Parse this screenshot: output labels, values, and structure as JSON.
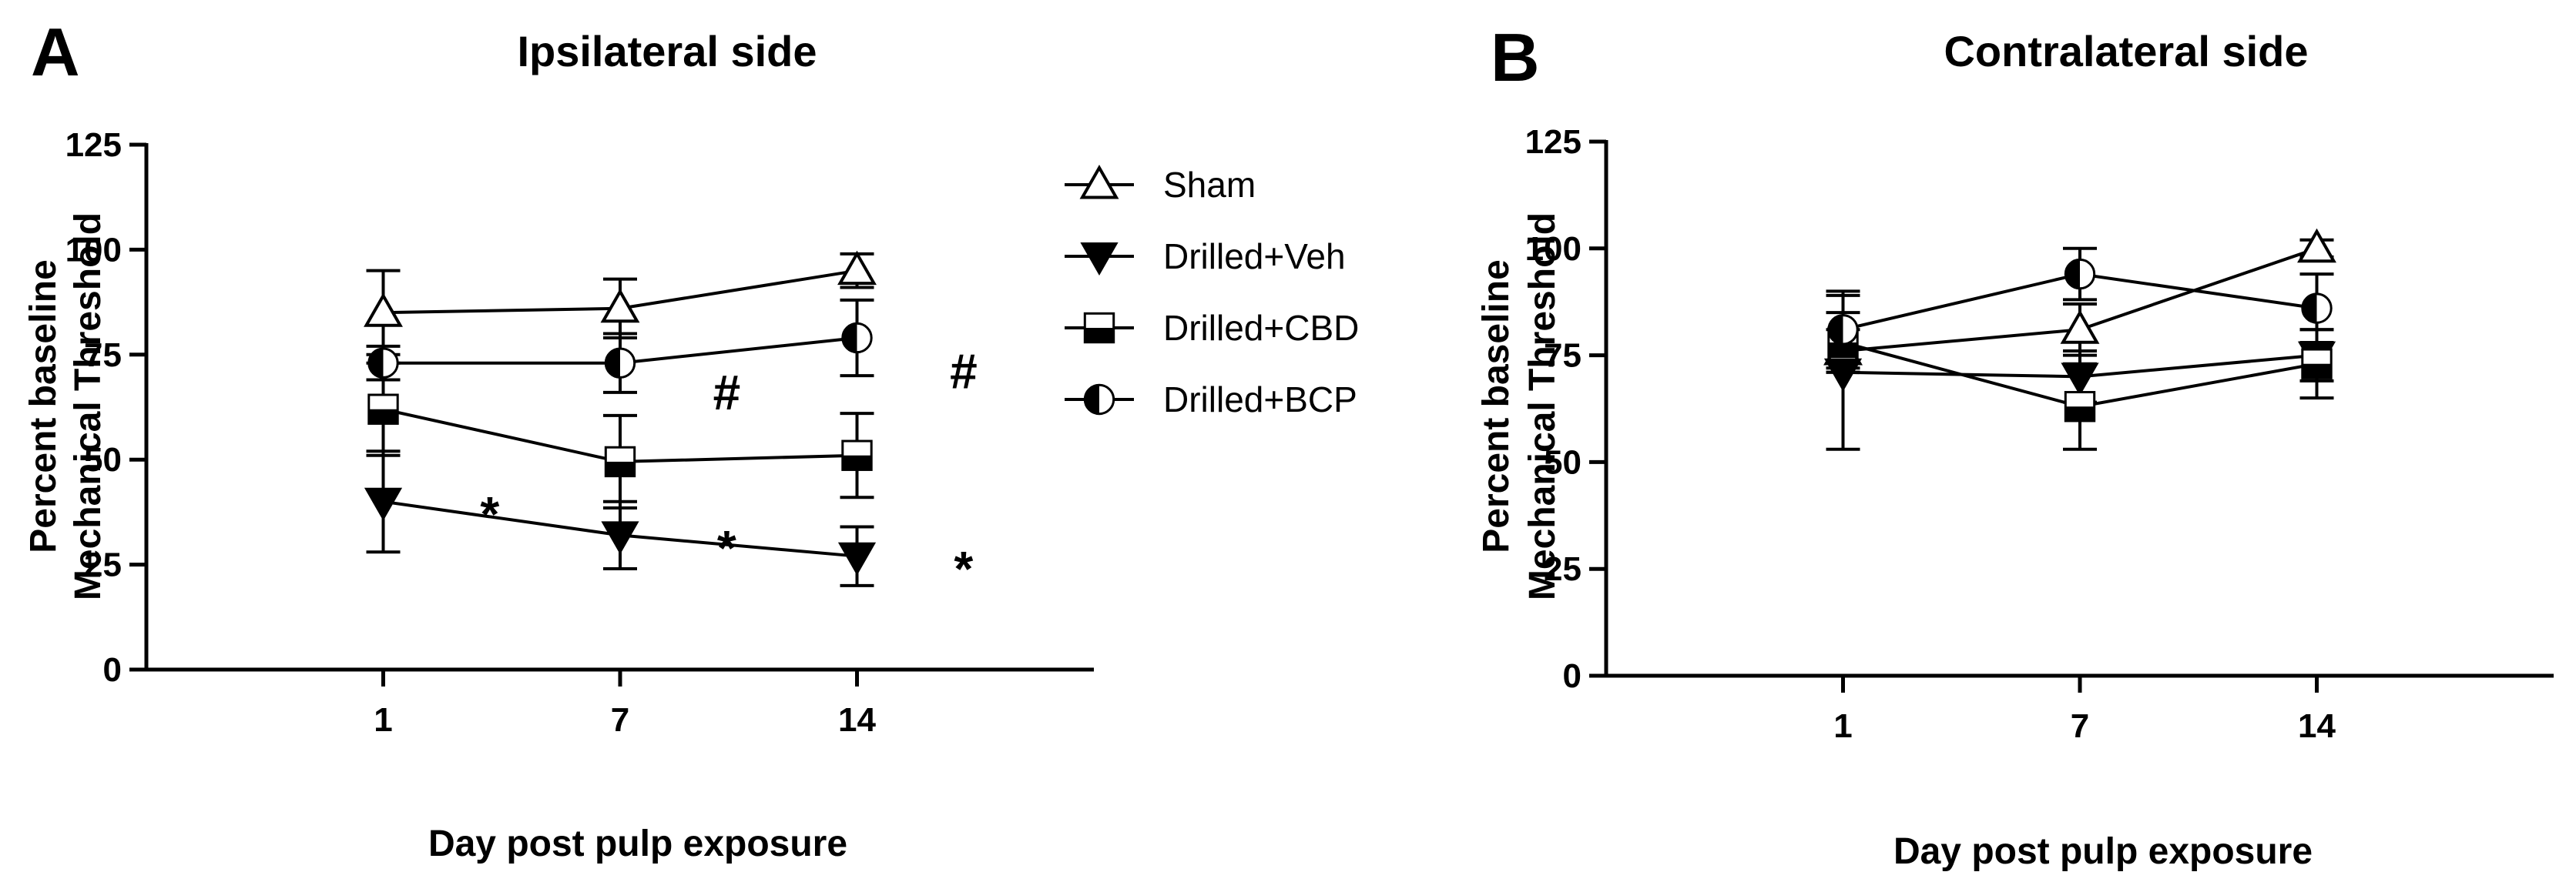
{
  "figure": {
    "legend": [
      {
        "key": "sham",
        "label": "Sham",
        "marker": "triangle-up-open"
      },
      {
        "key": "veh",
        "label": "Drilled+Veh",
        "marker": "triangle-down-filled"
      },
      {
        "key": "cbd",
        "label": "Drilled+CBD",
        "marker": "square-half"
      },
      {
        "key": "bcp",
        "label": "Drilled+BCP",
        "marker": "circle-half"
      }
    ]
  },
  "chart_data": [
    {
      "panel": "A",
      "type": "line",
      "title": "Ipsilateral side",
      "xlabel": "Day post pulp exposure",
      "ylabel": [
        "Percent baseline",
        "Mechanical Threshold"
      ],
      "categories": [
        "1",
        "7",
        "14"
      ],
      "x_range": [
        0,
        4
      ],
      "ylim": [
        0,
        125
      ],
      "yticks": [
        0,
        25,
        50,
        75,
        100,
        125
      ],
      "series": [
        {
          "key": "sham",
          "name": "Sham",
          "values": [
            85,
            86,
            95
          ],
          "err": [
            10,
            7,
            4
          ]
        },
        {
          "key": "veh",
          "name": "Drilled+Veh",
          "values": [
            40,
            32,
            27
          ],
          "err": [
            12,
            8,
            7
          ]
        },
        {
          "key": "cbd",
          "name": "Drilled+CBD",
          "values": [
            62,
            49.5,
            51
          ],
          "err": [
            11,
            11,
            10
          ]
        },
        {
          "key": "bcp",
          "name": "Drilled+BCP",
          "values": [
            73,
            73,
            79
          ],
          "err": [
            4,
            7,
            9
          ]
        }
      ],
      "annotations": [
        {
          "text": "*",
          "category": 0,
          "near": 40,
          "dx": 0.45,
          "dy": -3
        },
        {
          "text": "*",
          "category": 1,
          "near": 32,
          "dx": 0.45,
          "dy": -3
        },
        {
          "text": "*",
          "category": 2,
          "near": 27,
          "dx": 0.45,
          "dy": -3
        },
        {
          "text": "#",
          "category": 1,
          "near": 73,
          "dx": 0.45,
          "dy": -7
        },
        {
          "text": "#",
          "category": 2,
          "near": 79,
          "dx": 0.45,
          "dy": -8
        }
      ]
    },
    {
      "panel": "B",
      "type": "line",
      "title": "Contralateral side",
      "xlabel": "Day post pulp exposure",
      "ylabel": [
        "Percent baseline",
        "Mechanical Threshold"
      ],
      "categories": [
        "1",
        "7",
        "14"
      ],
      "x_range": [
        0,
        4
      ],
      "ylim": [
        0,
        125
      ],
      "yticks": [
        0,
        25,
        50,
        75,
        100,
        125
      ],
      "series": [
        {
          "key": "sham",
          "name": "Sham",
          "values": [
            76,
            81,
            100
          ],
          "err": [
            5,
            6,
            2
          ]
        },
        {
          "key": "veh",
          "name": "Drilled+Veh",
          "values": [
            71,
            70,
            75
          ],
          "err": [
            18,
            6,
            6
          ]
        },
        {
          "key": "cbd",
          "name": "Drilled+CBD",
          "values": [
            78,
            63,
            73
          ],
          "err": [
            7,
            10,
            8
          ]
        },
        {
          "key": "bcp",
          "name": "Drilled+BCP",
          "values": [
            81,
            94,
            86
          ],
          "err": [
            9,
            6,
            8
          ]
        }
      ],
      "annotations": []
    }
  ]
}
